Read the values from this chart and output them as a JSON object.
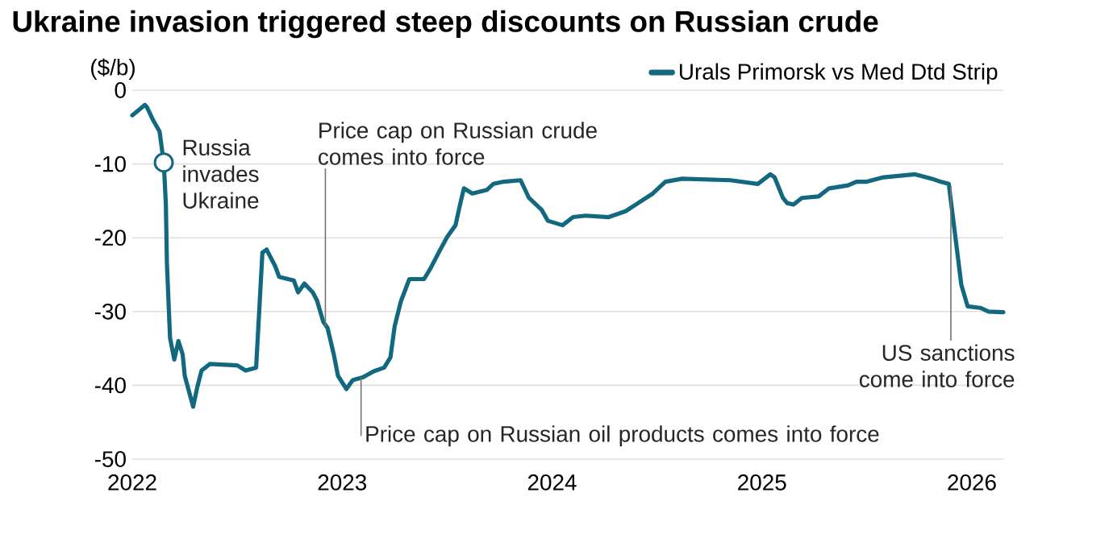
{
  "chart_data": {
    "type": "line",
    "title": "Ukraine invasion triggered steep discounts on Russian crude",
    "ylabel": "($/b)",
    "x": [
      2022.0,
      2022.06,
      2022.07,
      2022.1,
      2022.13,
      2022.15,
      2022.16,
      2022.165,
      2022.18,
      2022.2,
      2022.22,
      2022.24,
      2022.25,
      2022.29,
      2022.31,
      2022.33,
      2022.37,
      2022.5,
      2022.54,
      2022.59,
      2022.62,
      2022.64,
      2022.68,
      2022.7,
      2022.77,
      2022.79,
      2022.82,
      2022.86,
      2022.88,
      2022.91,
      2022.93,
      2022.96,
      2022.98,
      2023.02,
      2023.05,
      2023.1,
      2023.15,
      2023.2,
      2023.23,
      2023.25,
      2023.28,
      2023.32,
      2023.39,
      2023.42,
      2023.46,
      2023.5,
      2023.54,
      2023.56,
      2023.58,
      2023.62,
      2023.69,
      2023.72,
      2023.77,
      2023.85,
      2023.89,
      2023.95,
      2023.98,
      2024.05,
      2024.1,
      2024.16,
      2024.27,
      2024.35,
      2024.41,
      2024.48,
      2024.54,
      2024.62,
      2024.85,
      2024.98,
      2025.04,
      2025.06,
      2025.1,
      2025.12,
      2025.15,
      2025.19,
      2025.27,
      2025.32,
      2025.41,
      2025.45,
      2025.5,
      2025.58,
      2025.73,
      2025.81,
      2025.85,
      2025.89,
      2025.95,
      2025.98,
      2026.04,
      2026.08,
      2026.15
    ],
    "series": [
      {
        "name": "Urals Primorsk vs Med Dtd Strip",
        "color": "#12697f",
        "values": [
          -3.4,
          -2.0,
          -2.3,
          -4.1,
          -5.6,
          -9.8,
          -15.4,
          -23.4,
          -33.6,
          -36.5,
          -34,
          -35.8,
          -38.7,
          -42.9,
          -40.2,
          -38,
          -37.1,
          -37.3,
          -38,
          -37.6,
          -22,
          -21.6,
          -23.8,
          -25.3,
          -25.8,
          -27.4,
          -26.2,
          -27.4,
          -28.5,
          -31.4,
          -32.2,
          -35.8,
          -38.7,
          -40.5,
          -39.3,
          -38.9,
          -38.1,
          -37.6,
          -36.2,
          -32,
          -28.6,
          -25.6,
          -25.6,
          -24.2,
          -22,
          -19.9,
          -18.3,
          -15.7,
          -13.3,
          -14,
          -13.5,
          -12.7,
          -12.4,
          -12.2,
          -14.6,
          -16.2,
          -17.7,
          -18.3,
          -17.2,
          -17,
          -17.2,
          -16.4,
          -15.3,
          -14,
          -12.4,
          -12,
          -12.2,
          -12.7,
          -11.4,
          -11.8,
          -14.6,
          -15.3,
          -15.5,
          -14.6,
          -14.4,
          -13.3,
          -12.9,
          -12.4,
          -12.4,
          -11.8,
          -11.4,
          -12,
          -12.4,
          -12.7,
          -26.4,
          -29.3,
          -29.5,
          -30,
          -30.1
        ]
      }
    ],
    "xlim": [
      2022,
      2026.15
    ],
    "xticks": [
      2022,
      2023,
      2024,
      2025,
      2026
    ],
    "ylim": [
      -50,
      0
    ],
    "yticks": [
      0,
      -10,
      -20,
      -30,
      -40,
      -50
    ],
    "grid": "y",
    "legend": "top right",
    "line_style": "solid",
    "annotations": [
      {
        "text": "Russia invades Ukraine",
        "x": 2022.15,
        "y": -9.8
      },
      {
        "text": "Price cap on Russian crude comes into force",
        "x": 2022.92,
        "y": -32
      },
      {
        "text": "Price cap on Russian oil products comes into force",
        "x": 2023.09,
        "y": -39
      },
      {
        "text": "US sanctions come into force",
        "x": 2025.9,
        "y": -13
      }
    ]
  }
}
